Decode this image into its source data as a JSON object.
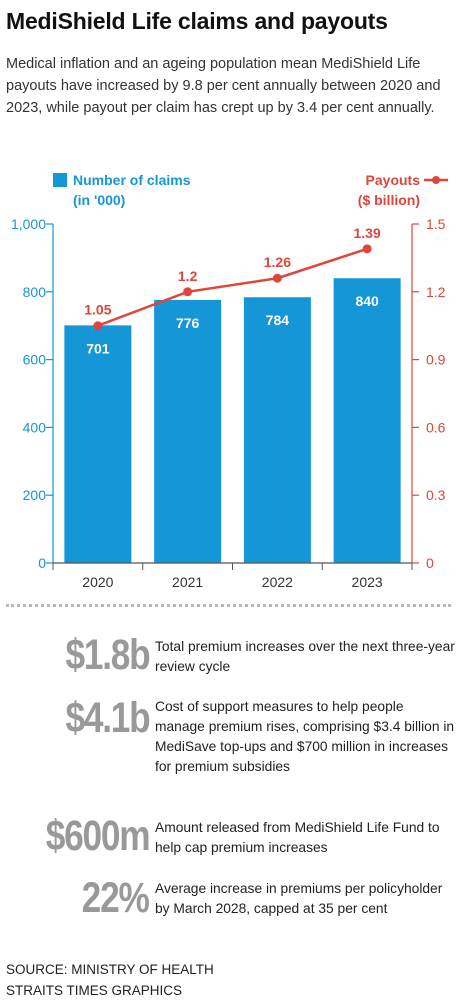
{
  "header": {
    "title": "MediShield Life claims and payouts",
    "subtitle": "Medical inflation and an ageing population mean MediShield Life payouts have increased by 9.8 per cent annually between 2020 and 2023, while payout per claim has crept up by 3.4 per cent annually."
  },
  "colors": {
    "bar": "#1596d6",
    "line": "#e0453a",
    "axis_left": "#1596d6",
    "axis_right": "#e0453a",
    "stat_value": "#999999"
  },
  "chart_data": {
    "type": "bar",
    "categories": [
      "2020",
      "2021",
      "2022",
      "2023"
    ],
    "series": [
      {
        "name": "Number of claims (in '000)",
        "legend_lines": [
          "Number of claims",
          "(in '000)"
        ],
        "type": "bar",
        "axis": "left",
        "values": [
          701,
          776,
          784,
          840
        ],
        "labels": [
          "701",
          "776",
          "784",
          "840"
        ]
      },
      {
        "name": "Payouts ($ billion)",
        "legend_lines": [
          "Payouts",
          "($ billion)"
        ],
        "type": "line",
        "axis": "right",
        "values": [
          1.05,
          1.2,
          1.26,
          1.39
        ],
        "labels": [
          "1.05",
          "1.2",
          "1.26",
          "1.39"
        ]
      }
    ],
    "ylim_left": [
      0,
      1000
    ],
    "yticks_left": [
      "0",
      "200",
      "400",
      "600",
      "800",
      "1,000"
    ],
    "ylim_right": [
      0,
      1.5
    ],
    "yticks_right": [
      "0",
      "0.3",
      "0.6",
      "0.9",
      "1.2",
      "1.5"
    ],
    "grid": false,
    "legend_placement": "top"
  },
  "stats": [
    {
      "value": "$1.8b",
      "text": "Total premium increases over the next three-year review cycle"
    },
    {
      "value": "$4.1b",
      "text": "Cost of support measures to help people manage premium rises, comprising $3.4 billion in MediSave top-ups and $700 million in increases for premium subsidies"
    },
    {
      "value": "$600m",
      "text": "Amount released from MediShield Life Fund to help cap premium increases"
    },
    {
      "value": "22%",
      "text": "Average increase in premiums per policyholder by March 2028, capped at 35 per cent"
    }
  ],
  "footer": {
    "source": "SOURCE: MINISTRY OF HEALTH",
    "credit": "STRAITS TIMES GRAPHICS"
  }
}
